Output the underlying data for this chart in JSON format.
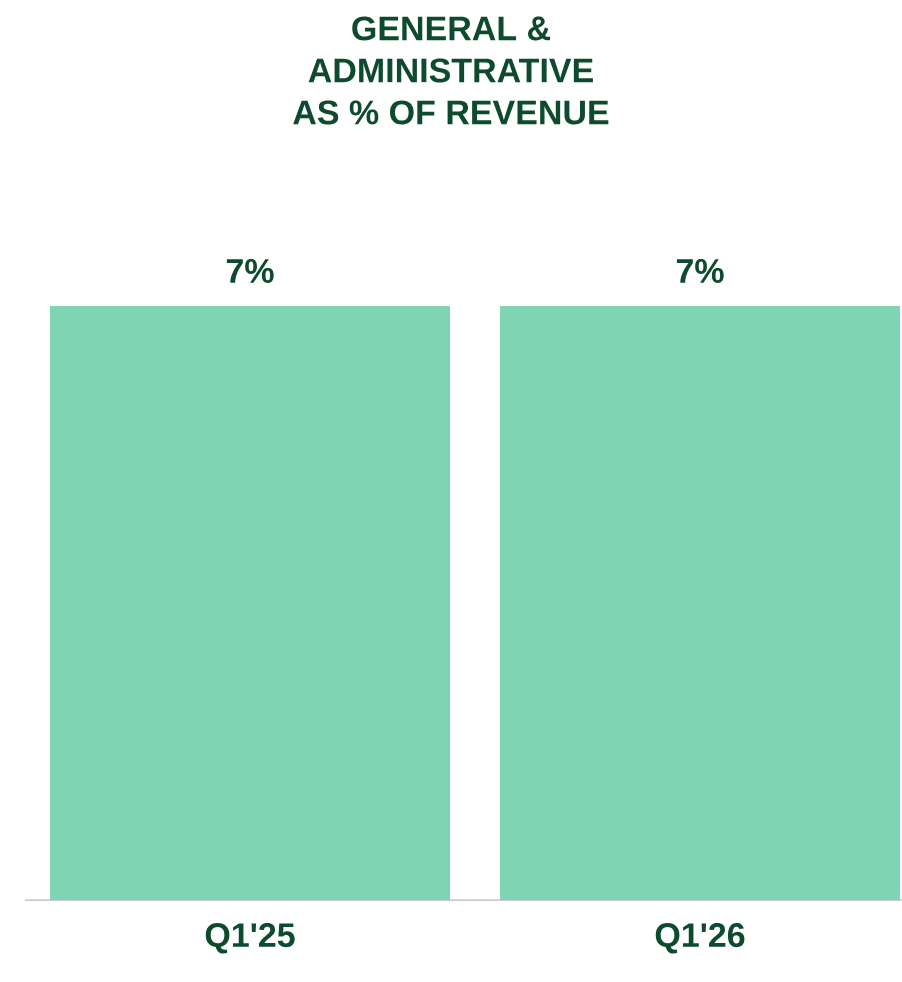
{
  "chart_data": {
    "type": "bar",
    "title": "GENERAL &\nADMINISTRATIVE\nAS % OF REVENUE",
    "categories": [
      "Q1'25",
      "Q1'26"
    ],
    "values": [
      7,
      7
    ],
    "value_labels": [
      "7%",
      "7%"
    ],
    "color": "#7fd4b4"
  }
}
